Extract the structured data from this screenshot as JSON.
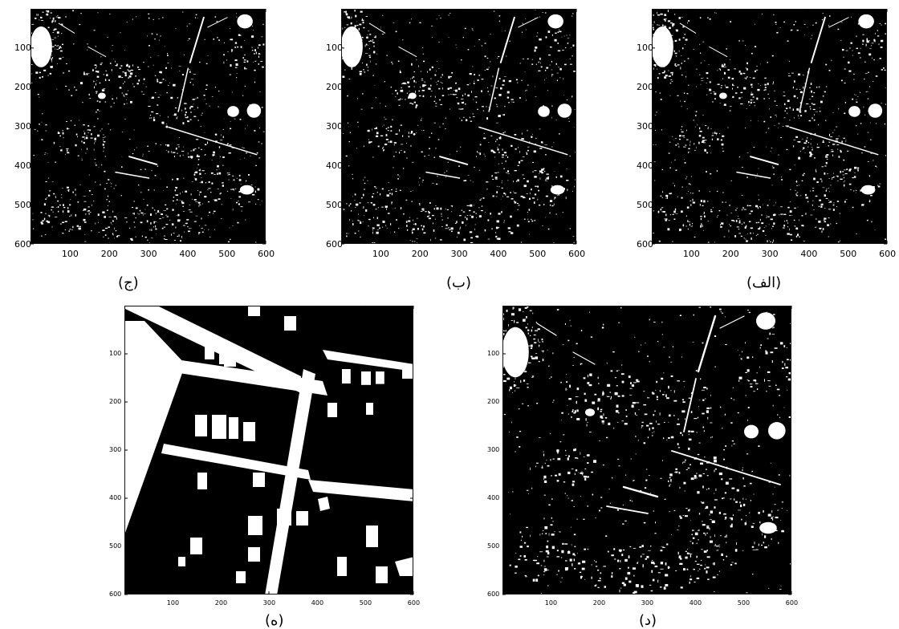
{
  "figure": {
    "panels": [
      {
        "id": "j",
        "caption": "(ج)",
        "x_ticks": [
          "100",
          "200",
          "300",
          "400",
          "500",
          "600"
        ],
        "y_ticks": [
          "100",
          "200",
          "300",
          "400",
          "500",
          "600"
        ],
        "content": "binary-mask"
      },
      {
        "id": "b",
        "caption": "(ب)",
        "x_ticks": [
          "100",
          "200",
          "300",
          "400",
          "500",
          "600"
        ],
        "y_ticks": [
          "100",
          "200",
          "300",
          "400",
          "500",
          "600"
        ],
        "content": "binary-mask"
      },
      {
        "id": "alef",
        "caption": "(الف)",
        "x_ticks": [
          "100",
          "200",
          "300",
          "400",
          "500",
          "600"
        ],
        "y_ticks": [
          "100",
          "200",
          "300",
          "400",
          "500",
          "600"
        ],
        "content": "binary-mask"
      },
      {
        "id": "h",
        "caption": "(ه)",
        "x_ticks": [
          "100",
          "200",
          "300",
          "400",
          "500",
          "600"
        ],
        "y_ticks": [
          "100",
          "200",
          "300",
          "400",
          "500",
          "600"
        ],
        "content": "reference-map"
      },
      {
        "id": "d",
        "caption": "(د)",
        "x_ticks": [
          "100",
          "200",
          "300",
          "400",
          "500",
          "600"
        ],
        "y_ticks": [
          "100",
          "200",
          "300",
          "400",
          "500",
          "600"
        ],
        "content": "binary-mask"
      }
    ]
  }
}
